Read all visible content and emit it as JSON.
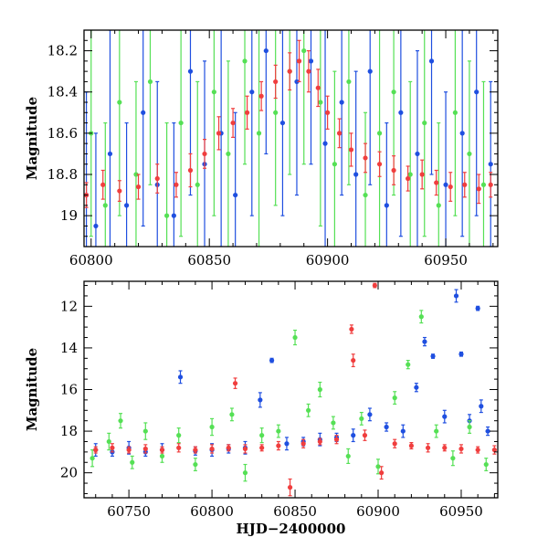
{
  "colors": {
    "red": "#f03e3e",
    "green": "#55e055",
    "blue": "#1f4fe0"
  },
  "chart_data": [
    {
      "type": "scatter",
      "title": "",
      "xlabel": "",
      "ylabel": "Magnitude",
      "xlim": [
        60797,
        60972
      ],
      "ylim": [
        18.1,
        19.15
      ],
      "y_inverted": true,
      "grid": false,
      "xticks": [
        60800,
        60850,
        60900,
        60950
      ],
      "yticks": [
        18.2,
        18.4,
        18.6,
        18.8,
        19
      ],
      "ytick_labels": [
        "18.2",
        "18.4",
        "18.6",
        "18.8",
        "19"
      ],
      "series": [
        {
          "color": "blue",
          "x": [
            60798,
            60802,
            60808,
            60815,
            60822,
            60828,
            60835,
            60842,
            60848,
            60855,
            60861,
            60868,
            60874,
            60881,
            60887,
            60893,
            60899,
            60906,
            60912,
            60918,
            60925,
            60931,
            60938,
            60944,
            60950,
            60957,
            60963,
            60969
          ],
          "y": [
            18.9,
            19.05,
            18.7,
            18.95,
            18.5,
            18.85,
            19.0,
            18.3,
            18.75,
            18.6,
            18.9,
            18.4,
            18.2,
            18.55,
            18.35,
            18.25,
            18.65,
            18.45,
            18.8,
            18.3,
            18.95,
            18.5,
            18.7,
            18.25,
            18.85,
            18.6,
            18.4,
            18.75
          ],
          "yerr": [
            0.5,
            0.45,
            0.6,
            0.4,
            0.55,
            0.5,
            0.45,
            0.6,
            0.5,
            0.55,
            0.4,
            0.6,
            0.5,
            0.45,
            0.55,
            0.5,
            0.6,
            0.45,
            0.5,
            0.55,
            0.4,
            0.6,
            0.5,
            0.55,
            0.45,
            0.5,
            0.6,
            0.4
          ]
        },
        {
          "color": "green",
          "x": [
            60800,
            60806,
            60812,
            60819,
            60825,
            60832,
            60838,
            60845,
            60852,
            60858,
            60865,
            60871,
            60878,
            60884,
            60890,
            60897,
            60903,
            60909,
            60916,
            60922,
            60928,
            60935,
            60941,
            60947,
            60954,
            60960,
            60966
          ],
          "y": [
            18.6,
            18.95,
            18.45,
            18.8,
            18.35,
            19.0,
            18.55,
            18.85,
            18.4,
            18.7,
            18.25,
            18.6,
            18.5,
            18.3,
            18.2,
            18.45,
            18.75,
            18.35,
            18.9,
            18.6,
            18.4,
            18.8,
            18.55,
            18.95,
            18.5,
            18.7,
            18.85
          ],
          "yerr": [
            0.5,
            0.4,
            0.55,
            0.45,
            0.5,
            0.45,
            0.55,
            0.5,
            0.6,
            0.45,
            0.5,
            0.55,
            0.45,
            0.5,
            0.55,
            0.6,
            0.45,
            0.5,
            0.4,
            0.55,
            0.5,
            0.45,
            0.55,
            0.4,
            0.5,
            0.45,
            0.5
          ]
        },
        {
          "color": "red",
          "x": [
            60798,
            60805,
            60812,
            60820,
            60828,
            60836,
            60842,
            60848,
            60854,
            60860,
            60866,
            60872,
            60878,
            60884,
            60888,
            60892,
            60896,
            60900,
            60905,
            60910,
            60916,
            60922,
            60928,
            60934,
            60940,
            60946,
            60952,
            60958,
            60964,
            60969
          ],
          "y": [
            18.9,
            18.85,
            18.88,
            18.86,
            18.82,
            18.85,
            18.78,
            18.7,
            18.6,
            18.55,
            18.5,
            18.42,
            18.35,
            18.3,
            18.25,
            18.3,
            18.38,
            18.5,
            18.6,
            18.68,
            18.72,
            18.75,
            18.78,
            18.82,
            18.8,
            18.84,
            18.86,
            18.85,
            18.87,
            18.85
          ],
          "yerr": [
            0.06,
            0.07,
            0.05,
            0.06,
            0.07,
            0.06,
            0.08,
            0.07,
            0.08,
            0.07,
            0.08,
            0.07,
            0.08,
            0.09,
            0.1,
            0.1,
            0.09,
            0.08,
            0.07,
            0.08,
            0.07,
            0.06,
            0.07,
            0.06,
            0.07,
            0.06,
            0.07,
            0.06,
            0.07,
            0.06
          ]
        }
      ]
    },
    {
      "type": "scatter",
      "title": "",
      "xlabel": "HJD−2400000",
      "ylabel": "Magnitude",
      "xlim": [
        60723,
        60972
      ],
      "ylim": [
        10.8,
        21.2
      ],
      "y_inverted": true,
      "grid": false,
      "xticks": [
        60750,
        60800,
        60850,
        60900,
        60950
      ],
      "yticks": [
        12,
        14,
        16,
        18,
        20
      ],
      "series": [
        {
          "color": "blue",
          "x": [
            60730,
            60740,
            60750,
            60760,
            60770,
            60781,
            60790,
            60800,
            60810,
            60820,
            60829,
            60836,
            60845,
            60855,
            60865,
            60875,
            60885,
            60895,
            60905,
            60915,
            60923,
            60928,
            60933,
            60940,
            60947,
            60950,
            60955,
            60960,
            60962,
            60966
          ],
          "y": [
            18.9,
            19.0,
            18.8,
            19.0,
            18.9,
            15.4,
            18.95,
            18.9,
            18.85,
            18.8,
            16.5,
            14.6,
            18.6,
            18.5,
            18.4,
            18.3,
            18.2,
            17.2,
            17.8,
            18.0,
            15.9,
            13.7,
            14.4,
            17.3,
            11.5,
            14.3,
            17.5,
            12.1,
            16.8,
            18.0
          ],
          "yerr": [
            0.3,
            0.2,
            0.3,
            0.2,
            0.3,
            0.3,
            0.2,
            0.3,
            0.2,
            0.3,
            0.35,
            0.1,
            0.3,
            0.2,
            0.3,
            0.2,
            0.3,
            0.3,
            0.2,
            0.3,
            0.2,
            0.2,
            0.1,
            0.3,
            0.3,
            0.1,
            0.3,
            0.1,
            0.3,
            0.2
          ]
        },
        {
          "color": "green",
          "x": [
            60728,
            60738,
            60745,
            60752,
            60760,
            60770,
            60780,
            60790,
            60800,
            60812,
            60820,
            60830,
            60840,
            60850,
            60858,
            60865,
            60873,
            60882,
            60890,
            60900,
            60910,
            60918,
            60926,
            60935,
            60945,
            60955,
            60965
          ],
          "y": [
            19.3,
            18.5,
            17.5,
            19.5,
            18.0,
            19.2,
            18.2,
            19.6,
            17.8,
            17.2,
            20.0,
            18.2,
            18.0,
            13.5,
            17.0,
            16.0,
            17.6,
            19.2,
            17.4,
            19.7,
            16.4,
            14.8,
            12.5,
            18.0,
            19.3,
            17.8,
            19.6
          ],
          "yerr": [
            0.4,
            0.4,
            0.35,
            0.3,
            0.4,
            0.3,
            0.35,
            0.3,
            0.4,
            0.3,
            0.4,
            0.35,
            0.3,
            0.35,
            0.3,
            0.35,
            0.3,
            0.35,
            0.3,
            0.35,
            0.3,
            0.2,
            0.3,
            0.3,
            0.35,
            0.3,
            0.3
          ]
        },
        {
          "color": "red",
          "x": [
            60730,
            60740,
            60750,
            60760,
            60770,
            60780,
            60790,
            60800,
            60810,
            60814,
            60820,
            60830,
            60840,
            60847,
            60855,
            60865,
            60875,
            60884,
            60885,
            60892,
            60898,
            60902,
            60910,
            60920,
            60930,
            60940,
            60950,
            60960,
            60970
          ],
          "y": [
            18.9,
            18.8,
            18.9,
            18.85,
            18.9,
            18.8,
            18.9,
            18.85,
            18.8,
            15.7,
            18.85,
            18.8,
            18.7,
            20.7,
            18.6,
            18.5,
            18.4,
            13.1,
            14.6,
            18.2,
            11.0,
            20.0,
            18.6,
            18.7,
            18.8,
            18.8,
            18.85,
            18.9,
            18.9
          ],
          "yerr": [
            0.15,
            0.2,
            0.15,
            0.2,
            0.15,
            0.2,
            0.15,
            0.2,
            0.15,
            0.25,
            0.2,
            0.15,
            0.2,
            0.4,
            0.2,
            0.15,
            0.2,
            0.2,
            0.3,
            0.25,
            0.1,
            0.3,
            0.2,
            0.15,
            0.2,
            0.15,
            0.2,
            0.15,
            0.2
          ]
        }
      ]
    }
  ]
}
